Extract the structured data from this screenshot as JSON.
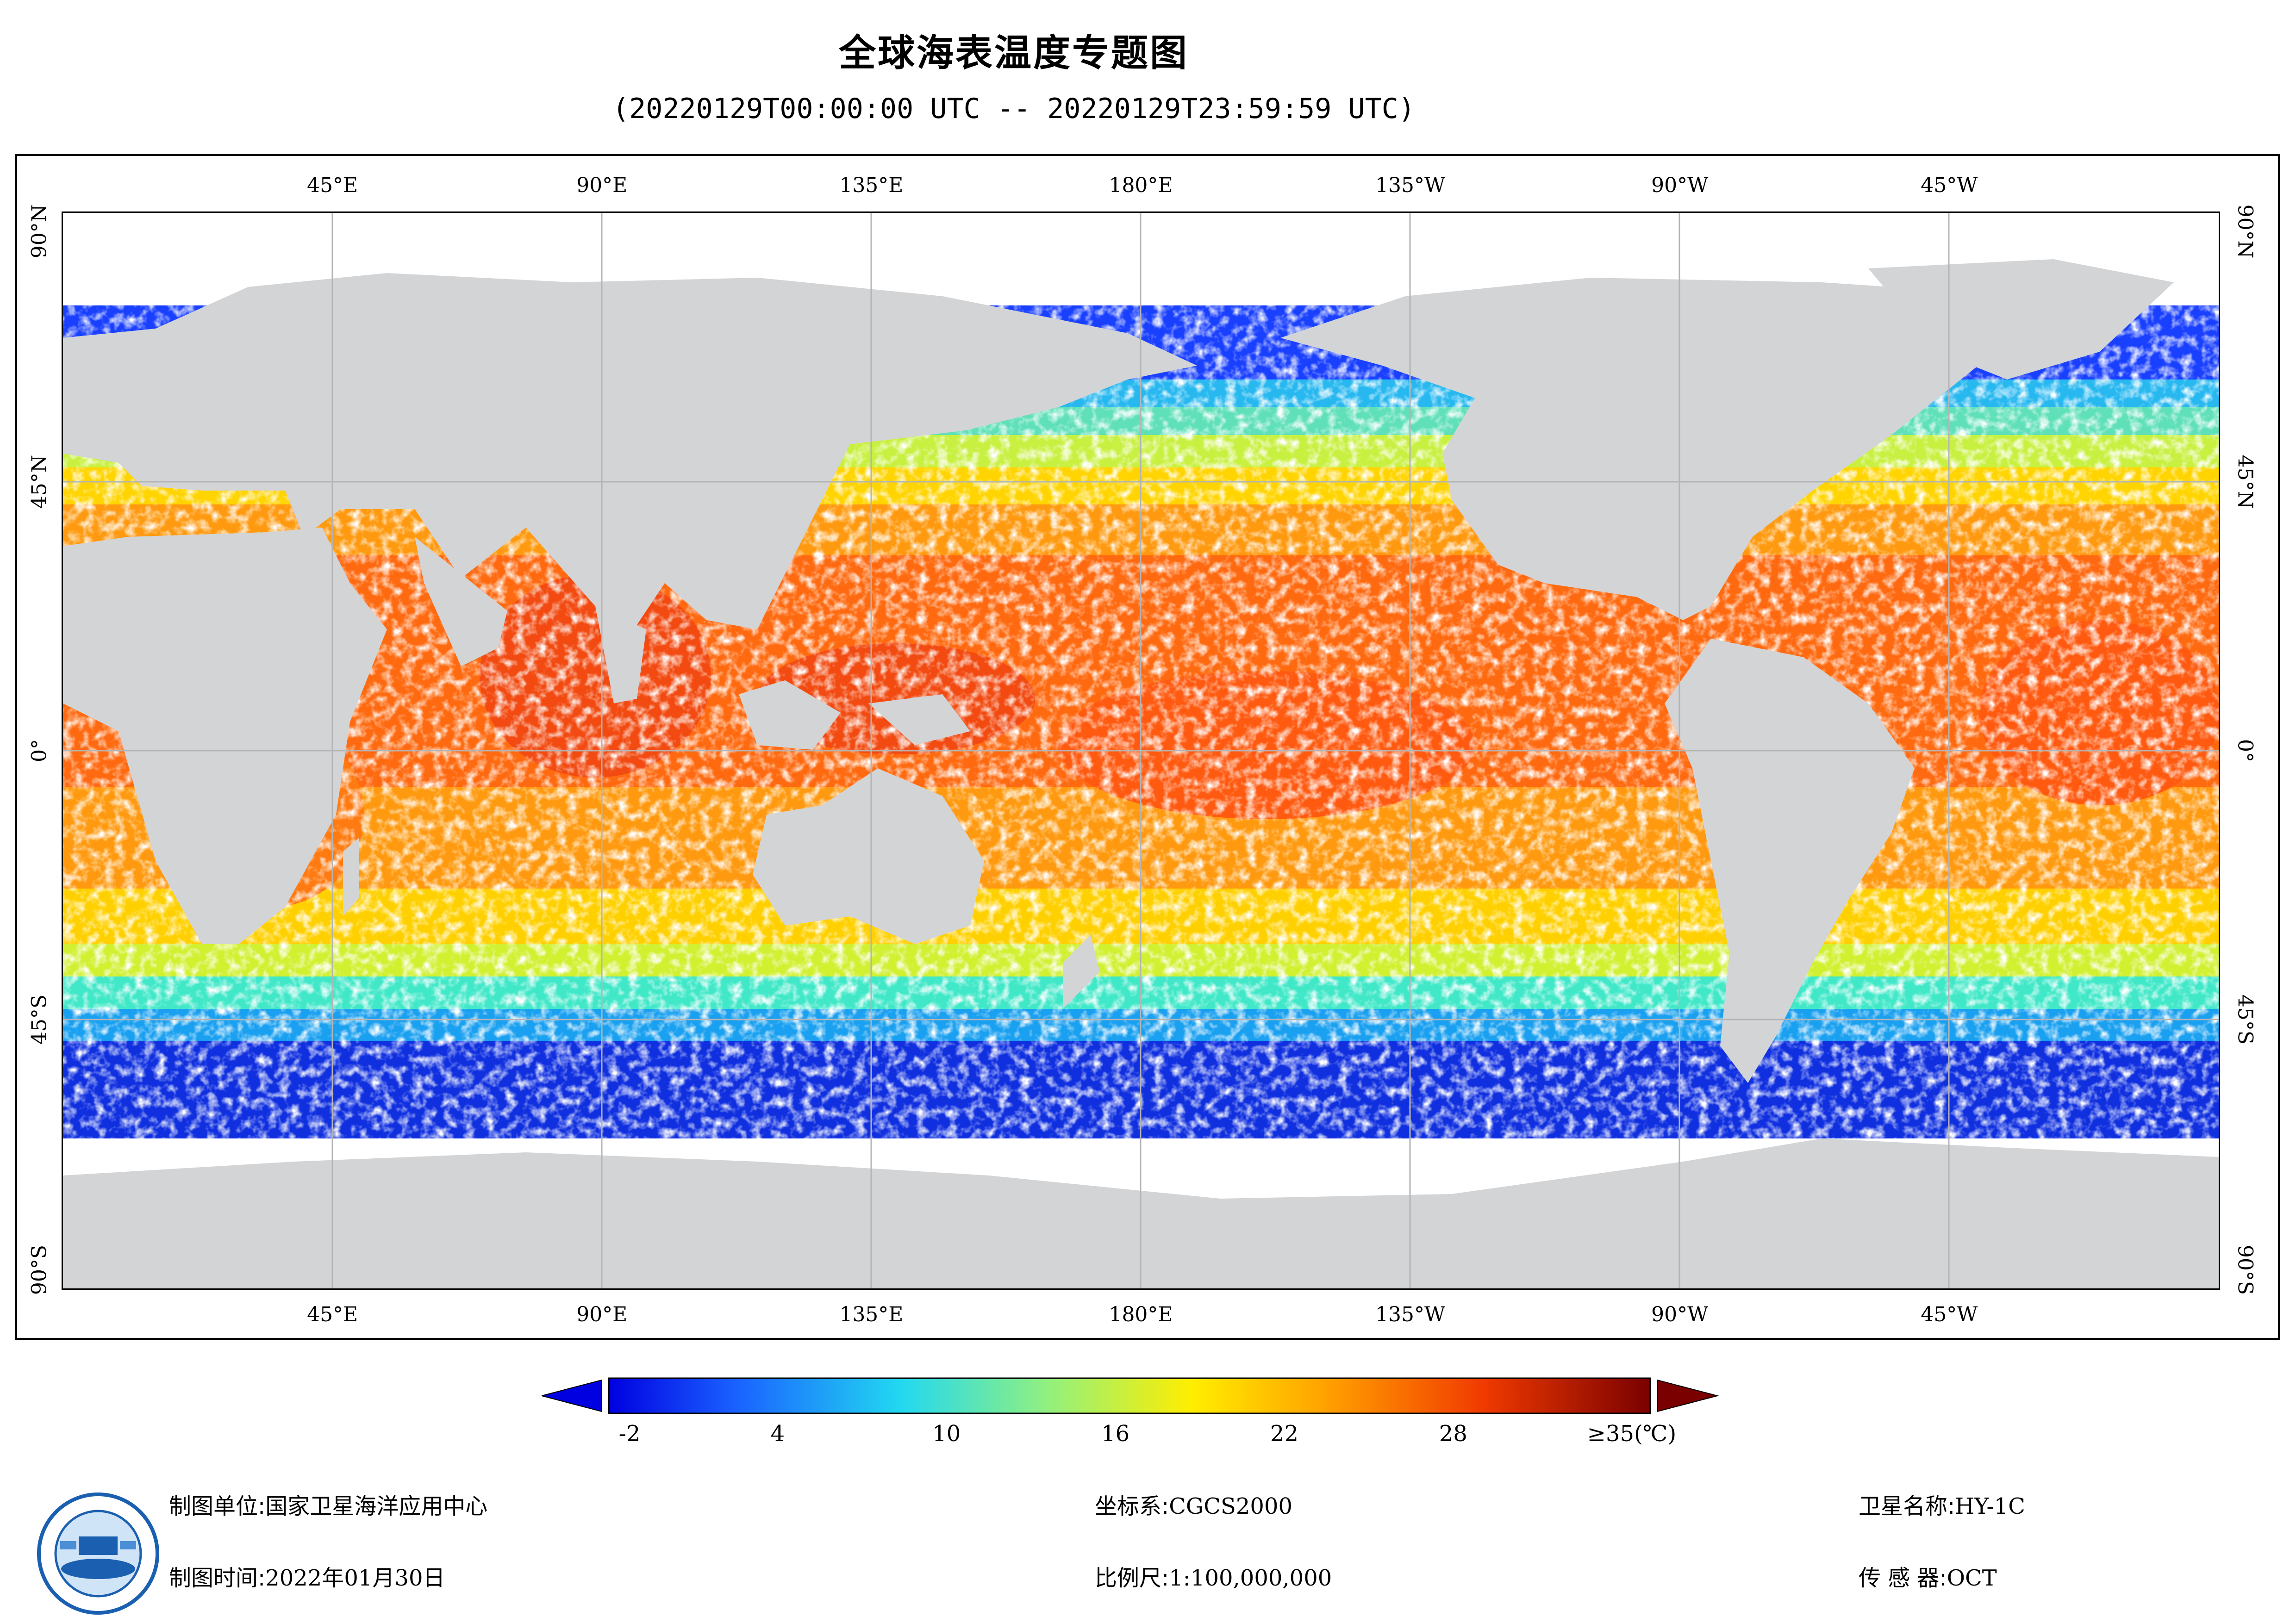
{
  "title": "全球海表温度专题图",
  "subtitle": "(20220129T00:00:00 UTC -- 20220129T23:59:59 UTC)",
  "axes": {
    "top_labels": [
      "45°E",
      "90°E",
      "135°E",
      "180°E",
      "135°W",
      "90°W",
      "45°W"
    ],
    "bottom_labels": [
      "45°E",
      "90°E",
      "135°E",
      "180°E",
      "135°W",
      "90°W",
      "45°W"
    ],
    "left_labels": [
      "90°N",
      "45°N",
      "0°",
      "45°S",
      "90°S"
    ],
    "right_labels": [
      "90°N",
      "45°N",
      "0°",
      "45°S",
      "90°S"
    ]
  },
  "legend": {
    "min": -2,
    "max": 35,
    "tick_labels": [
      "-2",
      "4",
      "10",
      "16",
      "22",
      "28",
      "≥35(℃)"
    ],
    "tick_values": [
      -2,
      4,
      10,
      16,
      22,
      28,
      35
    ],
    "colors": {
      "low_arrow": "#0000e0",
      "high_arrow": "#7a0000"
    }
  },
  "colors": {
    "land": "#d3d4d6",
    "nodata": "#ffffff",
    "grid": "#b4b4b4"
  },
  "footer": {
    "org_key": "制图单位:",
    "org_val": "国家卫星海洋应用中心",
    "time_key": "制图时间:",
    "time_val": "2022年01月30日",
    "crs_key": "坐标系:",
    "crs_val": "CGCS2000",
    "scale_key": "比例尺:",
    "scale_val": "1:100,000,000",
    "sat_key": "卫星名称:",
    "sat_val": "HY-1C",
    "sensor_key": "传 感 器:",
    "sensor_val": "OCT"
  },
  "logo_icon": "agency-logo-icon"
}
